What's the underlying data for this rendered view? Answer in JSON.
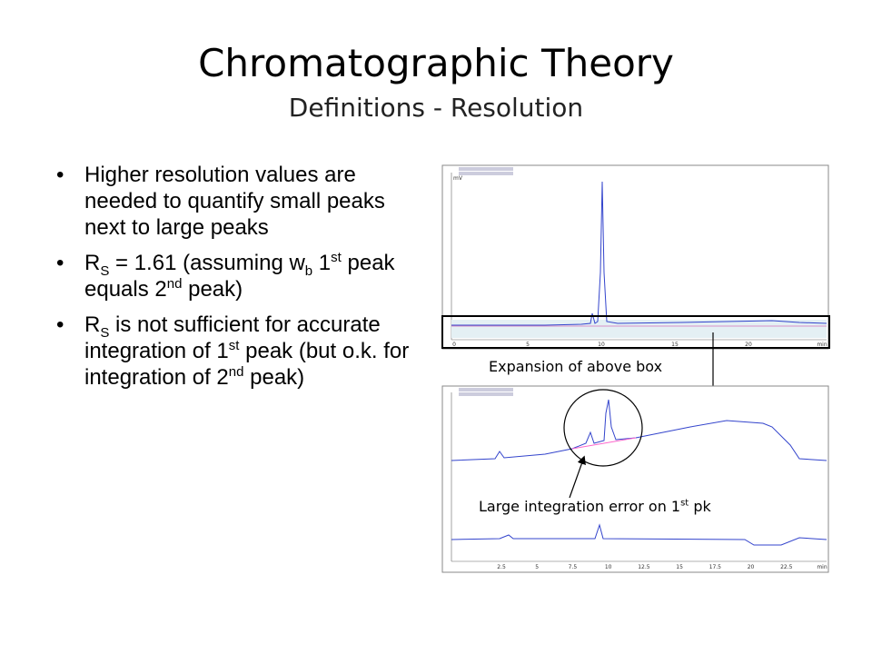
{
  "header": {
    "title": "Chromatographic Theory",
    "subtitle": "Definitions - Resolution"
  },
  "bullets": [
    [
      {
        "text": "Higher resolution values are needed to quantify small peaks next to large peaks"
      }
    ],
    [
      {
        "text": "R"
      },
      {
        "sub": "S"
      },
      {
        "text": " = 1.61 (assuming w"
      },
      {
        "sub": "b"
      },
      {
        "text": " 1"
      },
      {
        "sup": "st"
      },
      {
        "text": " peak equals 2"
      },
      {
        "sup": "nd"
      },
      {
        "text": " peak)"
      }
    ],
    [
      {
        "text": "R"
      },
      {
        "sub": "S"
      },
      {
        "text": " is not sufficient for accurate integration of 1"
      },
      {
        "sup": "st"
      },
      {
        "text": " peak (but o.k. for integration of 2"
      },
      {
        "sup": "nd"
      },
      {
        "text": " peak)"
      }
    ]
  ],
  "figure": {
    "box_caption": "Expansion of above box",
    "error_caption": [
      {
        "text": "Large integration error on 1"
      },
      {
        "sup": "st"
      },
      {
        "text": " pk"
      }
    ],
    "top_plot": {
      "y_unit": "mV",
      "xticks": [
        "0",
        "5",
        "10",
        "15",
        "20",
        "min"
      ]
    },
    "bottom_plot": {
      "xticks": [
        "2.5",
        "5",
        "7.5",
        "10",
        "12.5",
        "15",
        "17.5",
        "20",
        "22.5",
        "min"
      ]
    }
  }
}
